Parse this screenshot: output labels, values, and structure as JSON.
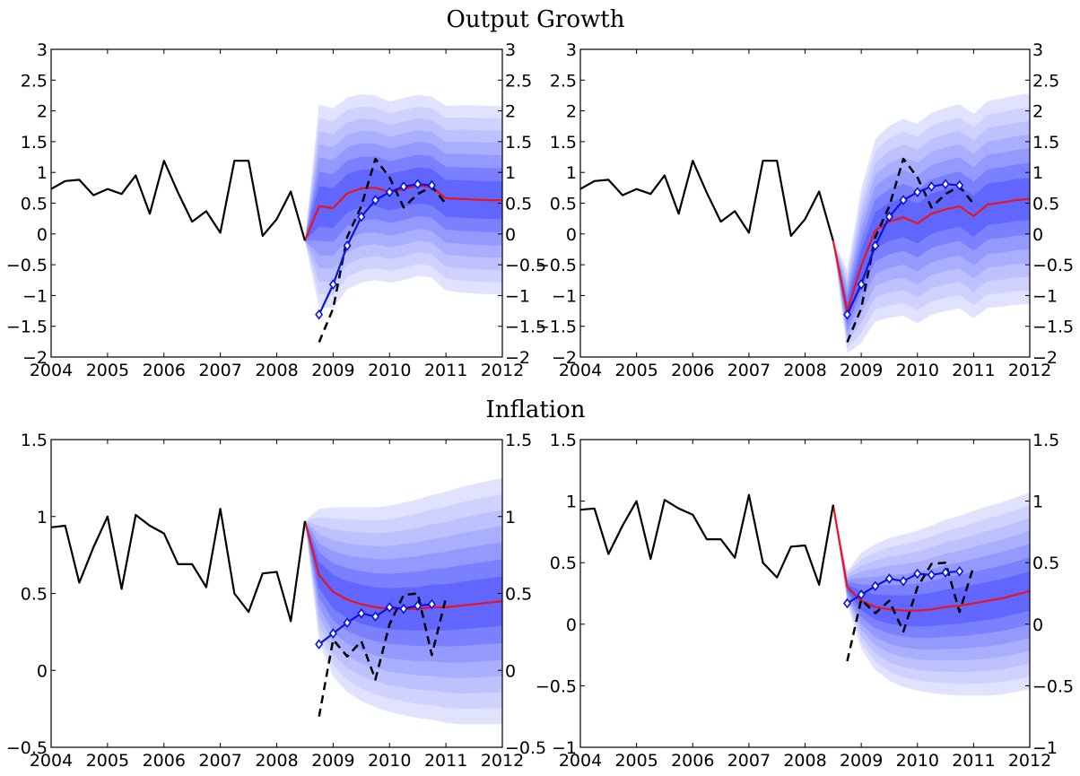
{
  "sections": [
    {
      "title": "Output Growth"
    },
    {
      "title": "Inflation"
    }
  ],
  "colors": {
    "history": "#000000",
    "forecast_median": "#e8141e",
    "blue_markers": "#0a14dc",
    "dashed_actual": "#000000",
    "fan_bands": [
      "#e0e2fe",
      "#cfd2fe",
      "#bdc1fe",
      "#a9aefe",
      "#9499fe",
      "#7a80fe",
      "#6066fe"
    ]
  },
  "chart_data": [
    {
      "id": "output-growth-left",
      "type": "line",
      "section": "Output Growth",
      "xlim": [
        2004,
        2012
      ],
      "ylim": [
        -2,
        3
      ],
      "xticks": [
        2004,
        2005,
        2006,
        2007,
        2008,
        2009,
        2010,
        2011,
        2012
      ],
      "yticks": [
        -2,
        -1.5,
        -1,
        -0.5,
        0,
        0.5,
        1,
        1.5,
        2,
        2.5,
        3
      ],
      "xtick_labels": [
        "2004",
        "2005",
        "2006",
        "2007",
        "2008",
        "2009",
        "2010",
        "2011",
        "2012"
      ],
      "ytick_labels": [
        "−2",
        "−1.5",
        "−1",
        "−0.5",
        "0",
        "0.5",
        "1",
        "1.5",
        "2",
        "2.5",
        "3"
      ],
      "grid": false,
      "history": {
        "x": [
          2004.0,
          2004.25,
          2004.5,
          2004.75,
          2005.0,
          2005.25,
          2005.5,
          2005.75,
          2006.0,
          2006.25,
          2006.5,
          2006.75,
          2007.0,
          2007.25,
          2007.5,
          2007.75,
          2008.0,
          2008.25,
          2008.5
        ],
        "y": [
          0.73,
          0.86,
          0.88,
          0.63,
          0.73,
          0.65,
          0.95,
          0.33,
          1.19,
          0.67,
          0.2,
          0.37,
          0.02,
          1.19,
          1.19,
          -0.03,
          0.24,
          0.69,
          -0.11
        ]
      },
      "forecast_median": {
        "x": [
          2008.5,
          2008.75,
          2009.0,
          2009.25,
          2009.5,
          2009.75,
          2010.0,
          2010.25,
          2010.5,
          2010.75,
          2011.0,
          2011.25,
          2011.5,
          2011.75,
          2012.0
        ],
        "y": [
          -0.11,
          0.45,
          0.42,
          0.66,
          0.74,
          0.75,
          0.68,
          0.73,
          0.79,
          0.76,
          0.58,
          0.57,
          0.56,
          0.55,
          0.55
        ]
      },
      "blue_series": {
        "x": [
          2008.75,
          2009.0,
          2009.25,
          2009.5,
          2009.75,
          2010.0,
          2010.25,
          2010.5,
          2010.75
        ],
        "y": [
          -1.31,
          -0.82,
          -0.19,
          0.28,
          0.55,
          0.68,
          0.77,
          0.81,
          0.79
        ]
      },
      "dashed_series": {
        "x": [
          2008.75,
          2009.0,
          2009.25,
          2009.5,
          2009.75,
          2010.0,
          2010.25,
          2010.5,
          2010.75,
          2011.0
        ],
        "y": [
          -1.76,
          -1.21,
          -0.05,
          0.45,
          1.22,
          0.92,
          0.43,
          0.65,
          0.77,
          0.49
        ]
      },
      "fan": {
        "x": [
          2008.5,
          2008.75,
          2009.0,
          2009.25,
          2009.5,
          2009.75,
          2010.0,
          2010.25,
          2010.5,
          2010.75,
          2011.0,
          2011.25,
          2011.5,
          2011.75,
          2012.0
        ],
        "center": [
          -0.11,
          0.45,
          0.42,
          0.66,
          0.74,
          0.75,
          0.68,
          0.73,
          0.79,
          0.76,
          0.58,
          0.57,
          0.56,
          0.55,
          0.55
        ],
        "width": [
          0,
          1.65,
          1.62,
          1.56,
          1.53,
          1.5,
          1.47,
          1.48,
          1.47,
          1.47,
          1.5,
          1.52,
          1.53,
          1.53,
          1.53
        ]
      }
    },
    {
      "id": "output-growth-right",
      "type": "line",
      "section": "Output Growth",
      "xlim": [
        2004,
        2012
      ],
      "ylim": [
        -2,
        3
      ],
      "xticks": [
        2004,
        2005,
        2006,
        2007,
        2008,
        2009,
        2010,
        2011,
        2012
      ],
      "yticks": [
        -2,
        -1.5,
        -1,
        -0.5,
        0,
        0.5,
        1,
        1.5,
        2,
        2.5,
        3
      ],
      "xtick_labels": [
        "2004",
        "2005",
        "2006",
        "2007",
        "2008",
        "2009",
        "2010",
        "2011",
        "2012"
      ],
      "ytick_labels": [
        "−2",
        "−1.5",
        "−1",
        "−0.5",
        "0",
        "0.5",
        "1",
        "1.5",
        "2",
        "2.5",
        "3"
      ],
      "grid": false,
      "history": {
        "x": [
          2004.0,
          2004.25,
          2004.5,
          2004.75,
          2005.0,
          2005.25,
          2005.5,
          2005.75,
          2006.0,
          2006.25,
          2006.5,
          2006.75,
          2007.0,
          2007.25,
          2007.5,
          2007.75,
          2008.0,
          2008.25,
          2008.5
        ],
        "y": [
          0.73,
          0.86,
          0.88,
          0.63,
          0.73,
          0.65,
          0.95,
          0.33,
          1.19,
          0.67,
          0.2,
          0.37,
          0.02,
          1.19,
          1.19,
          -0.03,
          0.24,
          0.69,
          -0.11
        ]
      },
      "forecast_median": {
        "x": [
          2008.5,
          2008.75,
          2009.0,
          2009.25,
          2009.5,
          2009.75,
          2010.0,
          2010.25,
          2010.5,
          2010.75,
          2011.0,
          2011.25,
          2011.5,
          2011.75,
          2012.0
        ],
        "y": [
          -0.11,
          -1.26,
          -0.52,
          0.06,
          0.2,
          0.27,
          0.17,
          0.33,
          0.4,
          0.45,
          0.29,
          0.48,
          0.51,
          0.55,
          0.57
        ]
      },
      "blue_series": {
        "x": [
          2008.75,
          2009.0,
          2009.25,
          2009.5,
          2009.75,
          2010.0,
          2010.25,
          2010.5,
          2010.75
        ],
        "y": [
          -1.31,
          -0.82,
          -0.19,
          0.28,
          0.55,
          0.68,
          0.77,
          0.81,
          0.79
        ]
      },
      "dashed_series": {
        "x": [
          2008.75,
          2009.0,
          2009.25,
          2009.5,
          2009.75,
          2010.0,
          2010.25,
          2010.5,
          2010.75,
          2011.0
        ],
        "y": [
          -1.76,
          -1.21,
          -0.05,
          0.45,
          1.22,
          0.92,
          0.43,
          0.65,
          0.77,
          0.49
        ]
      },
      "fan": {
        "x": [
          2008.5,
          2008.75,
          2009.0,
          2009.25,
          2009.5,
          2009.75,
          2010.0,
          2010.25,
          2010.5,
          2010.75,
          2011.0,
          2011.25,
          2011.5,
          2011.75,
          2012.0
        ],
        "center": [
          -0.11,
          -1.26,
          -0.52,
          0.06,
          0.2,
          0.27,
          0.17,
          0.33,
          0.4,
          0.45,
          0.29,
          0.48,
          0.51,
          0.55,
          0.57
        ],
        "width": [
          0,
          0.68,
          1.25,
          1.48,
          1.56,
          1.6,
          1.62,
          1.64,
          1.65,
          1.66,
          1.66,
          1.68,
          1.69,
          1.7,
          1.71
        ]
      }
    },
    {
      "id": "inflation-left",
      "type": "line",
      "section": "Inflation",
      "xlim": [
        2004,
        2012
      ],
      "ylim": [
        -0.5,
        1.5
      ],
      "xticks": [
        2004,
        2005,
        2006,
        2007,
        2008,
        2009,
        2010,
        2011,
        2012
      ],
      "yticks": [
        -0.5,
        0,
        0.5,
        1,
        1.5
      ],
      "xtick_labels": [
        "2004",
        "2005",
        "2006",
        "2007",
        "2008",
        "2009",
        "2010",
        "2011",
        "2012"
      ],
      "ytick_labels": [
        "−0.5",
        "0",
        "0.5",
        "1",
        "1.5"
      ],
      "grid": false,
      "history": {
        "x": [
          2004.0,
          2004.25,
          2004.5,
          2004.75,
          2005.0,
          2005.25,
          2005.5,
          2005.75,
          2006.0,
          2006.25,
          2006.5,
          2006.75,
          2007.0,
          2007.25,
          2007.5,
          2007.75,
          2008.0,
          2008.25,
          2008.5
        ],
        "y": [
          0.93,
          0.94,
          0.57,
          0.8,
          1.0,
          0.53,
          1.01,
          0.94,
          0.89,
          0.69,
          0.69,
          0.54,
          1.05,
          0.5,
          0.38,
          0.63,
          0.64,
          0.32,
          0.97
        ]
      },
      "forecast_median": {
        "x": [
          2008.5,
          2008.75,
          2009.0,
          2009.25,
          2009.5,
          2009.75,
          2010.0,
          2010.25,
          2010.5,
          2010.75,
          2011.0,
          2011.25,
          2011.5,
          2011.75,
          2012.0
        ],
        "y": [
          0.97,
          0.62,
          0.51,
          0.46,
          0.43,
          0.41,
          0.4,
          0.4,
          0.4,
          0.41,
          0.41,
          0.42,
          0.43,
          0.44,
          0.45
        ]
      },
      "blue_series": {
        "x": [
          2008.75,
          2009.0,
          2009.25,
          2009.5,
          2009.75,
          2010.0,
          2010.25,
          2010.5,
          2010.75
        ],
        "y": [
          0.17,
          0.24,
          0.31,
          0.37,
          0.35,
          0.41,
          0.4,
          0.42,
          0.43
        ]
      },
      "dashed_series": {
        "x": [
          2008.75,
          2009.0,
          2009.25,
          2009.5,
          2009.75,
          2010.0,
          2010.25,
          2010.5,
          2010.75,
          2011.0
        ],
        "y": [
          -0.3,
          0.2,
          0.09,
          0.19,
          -0.06,
          0.3,
          0.49,
          0.5,
          0.1,
          0.47
        ]
      },
      "fan": {
        "x": [
          2008.5,
          2008.75,
          2009.0,
          2009.25,
          2009.5,
          2009.75,
          2010.0,
          2010.25,
          2010.5,
          2010.75,
          2011.0,
          2011.25,
          2011.5,
          2011.75,
          2012.0
        ],
        "center": [
          0.97,
          0.62,
          0.51,
          0.46,
          0.43,
          0.41,
          0.4,
          0.4,
          0.4,
          0.41,
          0.41,
          0.42,
          0.43,
          0.44,
          0.45
        ],
        "width": [
          0,
          0.43,
          0.55,
          0.6,
          0.63,
          0.65,
          0.67,
          0.69,
          0.71,
          0.73,
          0.75,
          0.77,
          0.78,
          0.79,
          0.8
        ]
      }
    },
    {
      "id": "inflation-right",
      "type": "line",
      "section": "Inflation",
      "xlim": [
        2004,
        2012
      ],
      "ylim": [
        -1,
        1.5
      ],
      "xticks": [
        2004,
        2005,
        2006,
        2007,
        2008,
        2009,
        2010,
        2011,
        2012
      ],
      "yticks": [
        -1,
        -0.5,
        0,
        0.5,
        1,
        1.5
      ],
      "xtick_labels": [
        "2004",
        "2005",
        "2006",
        "2007",
        "2008",
        "2009",
        "2010",
        "2011",
        "2012"
      ],
      "ytick_labels": [
        "−1",
        "−0.5",
        "0",
        "0.5",
        "1",
        "1.5"
      ],
      "grid": false,
      "history": {
        "x": [
          2004.0,
          2004.25,
          2004.5,
          2004.75,
          2005.0,
          2005.25,
          2005.5,
          2005.75,
          2006.0,
          2006.25,
          2006.5,
          2006.75,
          2007.0,
          2007.25,
          2007.5,
          2007.75,
          2008.0,
          2008.25,
          2008.5
        ],
        "y": [
          0.93,
          0.94,
          0.57,
          0.8,
          1.0,
          0.53,
          1.01,
          0.94,
          0.89,
          0.69,
          0.69,
          0.54,
          1.05,
          0.5,
          0.38,
          0.63,
          0.64,
          0.32,
          0.97
        ]
      },
      "forecast_median": {
        "x": [
          2008.5,
          2008.75,
          2009.0,
          2009.25,
          2009.5,
          2009.75,
          2010.0,
          2010.25,
          2010.5,
          2010.75,
          2011.0,
          2011.25,
          2011.5,
          2011.75,
          2012.0
        ],
        "y": [
          0.97,
          0.3,
          0.19,
          0.14,
          0.12,
          0.11,
          0.11,
          0.12,
          0.14,
          0.15,
          0.17,
          0.19,
          0.21,
          0.24,
          0.27
        ]
      },
      "blue_series": {
        "x": [
          2008.75,
          2009.0,
          2009.25,
          2009.5,
          2009.75,
          2010.0,
          2010.25,
          2010.5,
          2010.75
        ],
        "y": [
          0.17,
          0.24,
          0.31,
          0.37,
          0.35,
          0.41,
          0.4,
          0.42,
          0.43
        ]
      },
      "dashed_series": {
        "x": [
          2008.75,
          2009.0,
          2009.25,
          2009.5,
          2009.75,
          2010.0,
          2010.25,
          2010.5,
          2010.75,
          2011.0
        ],
        "y": [
          -0.3,
          0.2,
          0.09,
          0.19,
          -0.06,
          0.3,
          0.49,
          0.5,
          0.1,
          0.47
        ]
      },
      "fan": {
        "x": [
          2008.5,
          2008.75,
          2009.0,
          2009.25,
          2009.5,
          2009.75,
          2010.0,
          2010.25,
          2010.5,
          2010.75,
          2011.0,
          2011.25,
          2011.5,
          2011.75,
          2012.0
        ],
        "center": [
          0.97,
          0.3,
          0.19,
          0.14,
          0.12,
          0.11,
          0.11,
          0.12,
          0.14,
          0.15,
          0.17,
          0.19,
          0.21,
          0.24,
          0.27
        ],
        "width": [
          0,
          0.13,
          0.39,
          0.51,
          0.58,
          0.62,
          0.65,
          0.68,
          0.71,
          0.73,
          0.75,
          0.77,
          0.78,
          0.79,
          0.8
        ]
      }
    }
  ]
}
